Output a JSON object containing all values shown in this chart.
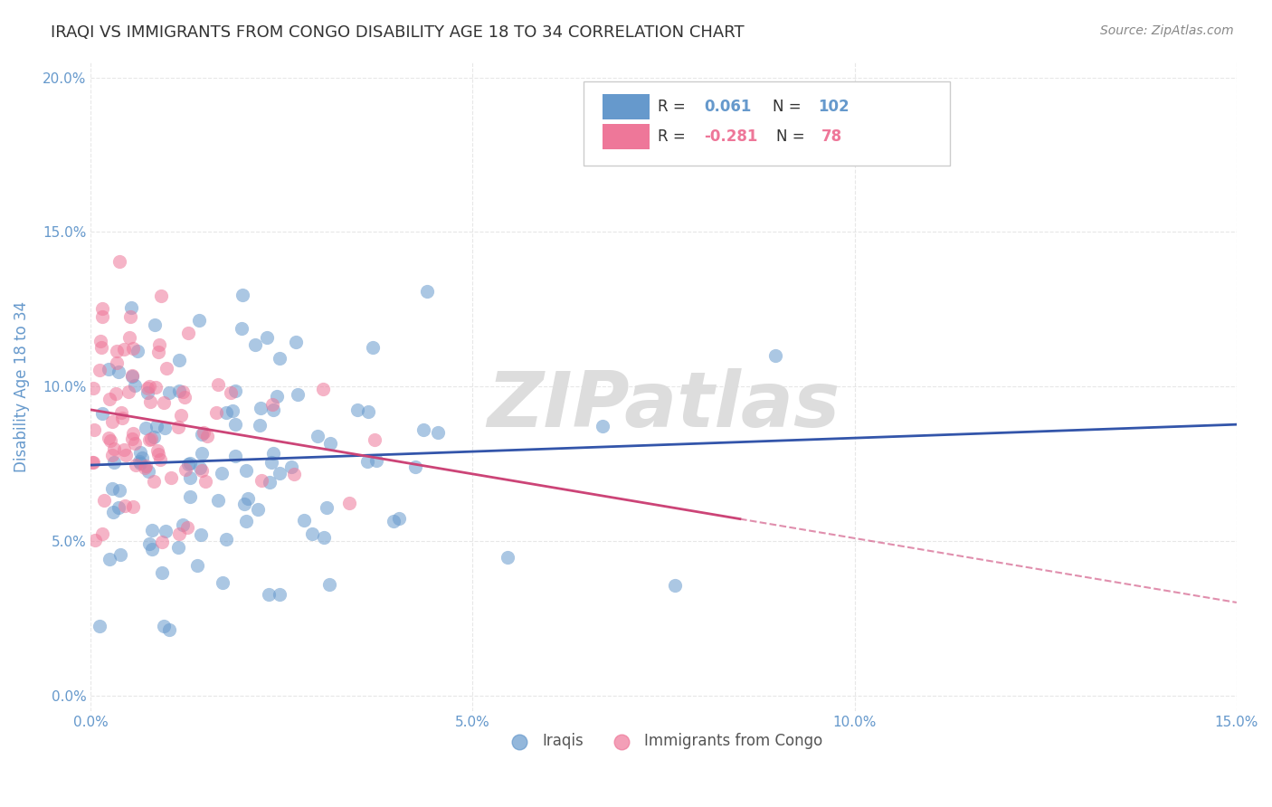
{
  "title": "IRAQI VS IMMIGRANTS FROM CONGO DISABILITY AGE 18 TO 34 CORRELATION CHART",
  "source": "Source: ZipAtlas.com",
  "xlabel_ticks": [
    "0.0%",
    "5.0%",
    "10.0%",
    "15.0%"
  ],
  "ylabel_label": "Disability Age 18 to 34",
  "xlim": [
    0.0,
    0.15
  ],
  "ylim": [
    -0.005,
    0.205
  ],
  "yticks": [
    0.0,
    0.05,
    0.1,
    0.15,
    0.2
  ],
  "ytick_labels": [
    "0.0%",
    "5.0%",
    "10.0%",
    "15.0%",
    "20.0%"
  ],
  "xticks": [
    0.0,
    0.05,
    0.1,
    0.15
  ],
  "xtick_labels": [
    "0.0%",
    "5.0%",
    "10.0%",
    "15.0%"
  ],
  "legend_entries": [
    {
      "label": "R =  0.061  N = 102",
      "color": "#6699cc"
    },
    {
      "label": "R = -0.281  N =  78",
      "color": "#ee7799"
    }
  ],
  "series1_label": "Iraqis",
  "series2_label": "Immigrants from Congo",
  "series1_color": "#6699cc",
  "series2_color": "#ee7799",
  "series1_line_color": "#3355aa",
  "series2_line_color": "#cc4477",
  "watermark": "ZIPatlas",
  "watermark_color": "#dddddd",
  "background_color": "#ffffff",
  "grid_color": "#dddddd",
  "title_color": "#333333",
  "axis_color": "#6699cc",
  "r1": 0.061,
  "n1": 102,
  "r2": -0.281,
  "n2": 78,
  "seed1": 42,
  "seed2": 99
}
